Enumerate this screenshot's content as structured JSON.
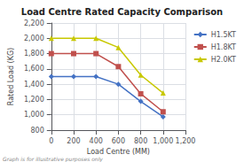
{
  "chart_data": {
    "type": "line",
    "title": "Load Centre Rated Capacity Comparison",
    "xlabel": "Load Centre (MM)",
    "ylabel": "Rated Load (KG)",
    "footnote": "Graph is for illustrative purposes only",
    "x": [
      0,
      200,
      400,
      600,
      800,
      1000
    ],
    "series": [
      {
        "name": "H1.5KT",
        "color": "#4472C4",
        "marker": "diamond",
        "values": [
          1500,
          1500,
          1500,
          1400,
          1175,
          975
        ]
      },
      {
        "name": "H1.8KT",
        "color": "#C0504D",
        "marker": "square",
        "values": [
          1800,
          1800,
          1800,
          1630,
          1275,
          1040
        ]
      },
      {
        "name": "H2.0KT",
        "color": "#C8C800",
        "marker": "triangle",
        "values": [
          2000,
          2000,
          2000,
          1880,
          1520,
          1285
        ]
      }
    ],
    "xlim": [
      0,
      1200
    ],
    "ylim": [
      800,
      2200
    ],
    "xticks": [
      0,
      200,
      400,
      600,
      800,
      1000,
      1200
    ],
    "yticks": [
      800,
      1000,
      1200,
      1400,
      1600,
      1800,
      2000,
      2200
    ],
    "grid": true,
    "legend": "right"
  }
}
